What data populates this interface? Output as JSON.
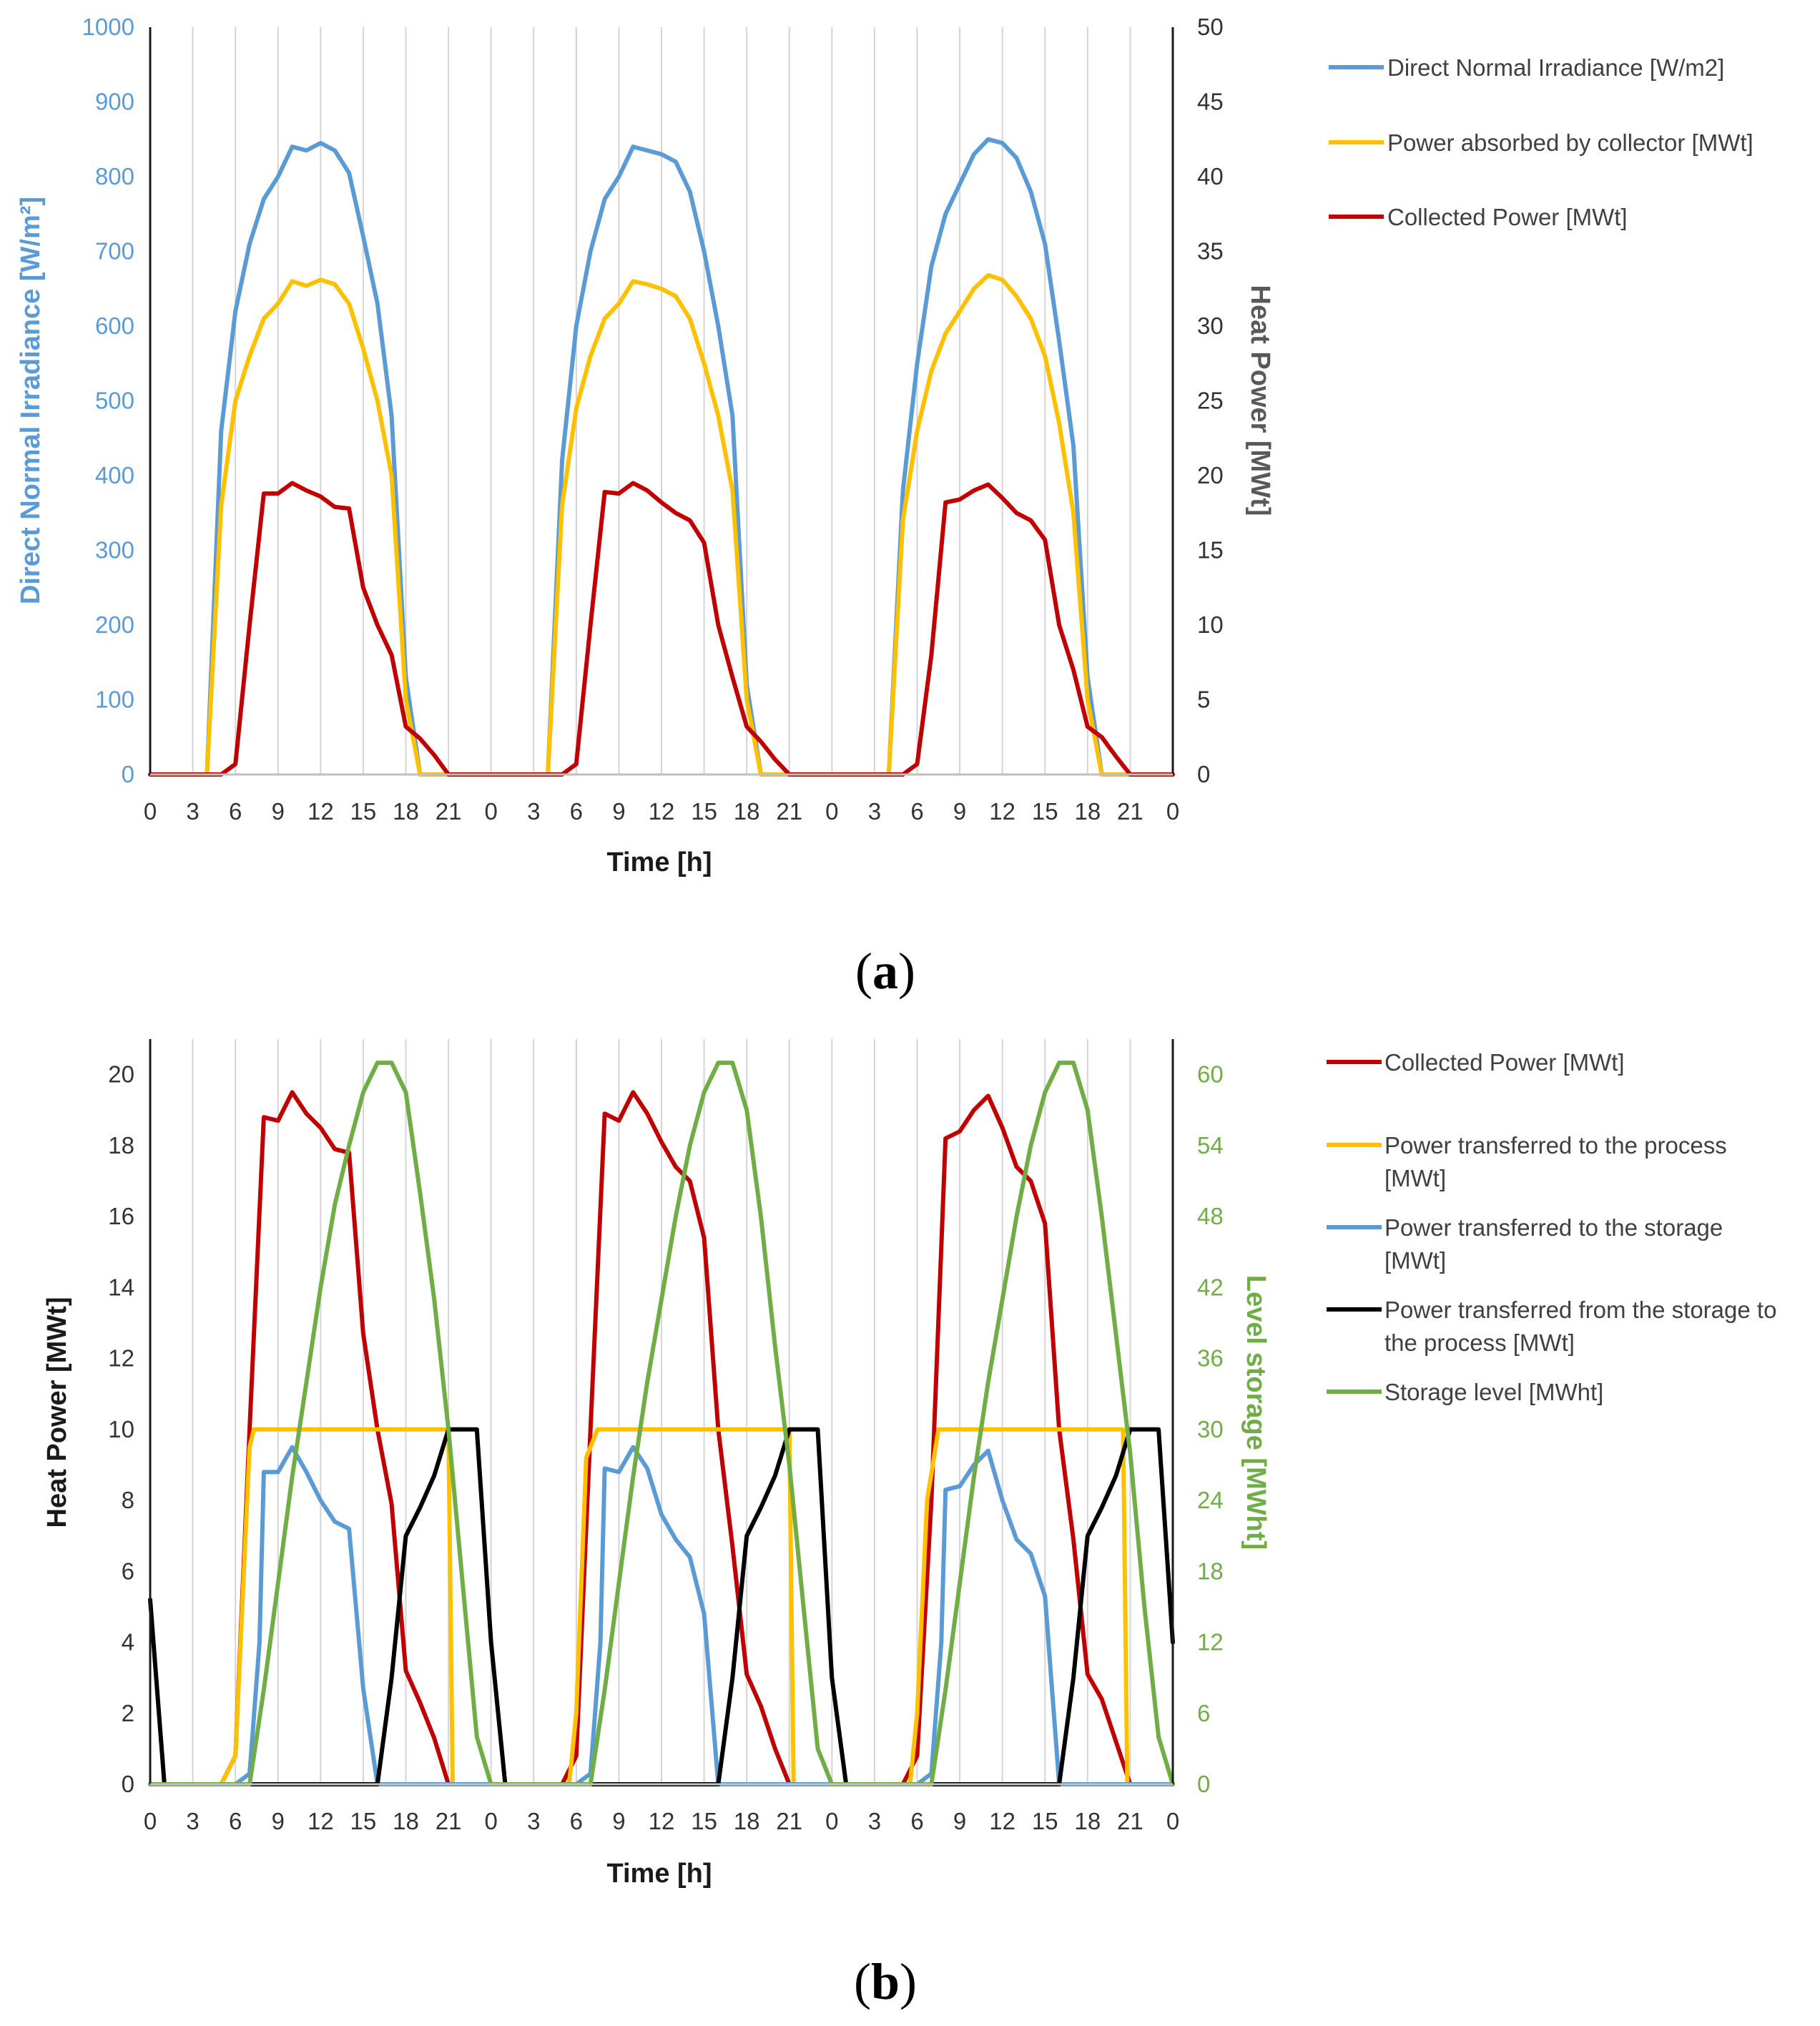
{
  "colors": {
    "blue": "#5b9bd5",
    "yellow": "#ffc000",
    "red": "#c00000",
    "black": "#000000",
    "green": "#70ad47",
    "gray_label": "#595959"
  },
  "chart_data": [
    {
      "id": "a",
      "type": "line",
      "panel_label": "a",
      "xlabel": "Time [h]",
      "x_tick_labels": [
        "0",
        "3",
        "6",
        "9",
        "12",
        "15",
        "18",
        "21",
        "0",
        "3",
        "6",
        "9",
        "12",
        "15",
        "18",
        "21",
        "0",
        "3",
        "6",
        "9",
        "12",
        "15",
        "18",
        "21",
        "0"
      ],
      "x_range": [
        0,
        72
      ],
      "y_left": {
        "label": "Direct Normal Irradiance [W/m²]",
        "range": [
          0,
          1000
        ],
        "ticks": [
          0,
          100,
          200,
          300,
          400,
          500,
          600,
          700,
          800,
          900,
          1000
        ]
      },
      "y_right": {
        "label": "Heat Power [MWt]",
        "range": [
          0,
          50
        ],
        "ticks": [
          0,
          5,
          10,
          15,
          20,
          25,
          30,
          35,
          40,
          45,
          50
        ]
      },
      "series": [
        {
          "name": "Direct Normal Irradiance [W/m2]",
          "axis": "left",
          "color": "#5b9bd5",
          "x": [
            0,
            1,
            2,
            3,
            4,
            5,
            6,
            7,
            8,
            9,
            10,
            11,
            12,
            13,
            14,
            15,
            16,
            17,
            18,
            19,
            20,
            21,
            22,
            23,
            24,
            25,
            26,
            27,
            28,
            29,
            30,
            31,
            32,
            33,
            34,
            35,
            36,
            37,
            38,
            39,
            40,
            41,
            42,
            43,
            44,
            45,
            46,
            47,
            48,
            49,
            50,
            51,
            52,
            53,
            54,
            55,
            56,
            57,
            58,
            59,
            60,
            61,
            62,
            63,
            64,
            65,
            66,
            67,
            68,
            69,
            70,
            71,
            72
          ],
          "values": [
            0,
            0,
            0,
            0,
            0,
            460,
            620,
            710,
            770,
            800,
            840,
            835,
            845,
            835,
            805,
            720,
            630,
            480,
            130,
            0,
            0,
            0,
            0,
            0,
            0,
            0,
            0,
            0,
            0,
            420,
            600,
            700,
            770,
            800,
            840,
            835,
            830,
            820,
            780,
            700,
            600,
            480,
            120,
            0,
            0,
            0,
            0,
            0,
            0,
            0,
            0,
            0,
            0,
            380,
            550,
            680,
            750,
            790,
            830,
            850,
            845,
            825,
            780,
            710,
            580,
            440,
            130,
            0,
            0,
            0,
            0,
            0,
            0
          ]
        },
        {
          "name": "Power absorbed by collector [MWt]",
          "axis": "right",
          "color": "#ffc000",
          "x": [
            0,
            1,
            2,
            3,
            4,
            5,
            6,
            7,
            8,
            9,
            10,
            11,
            12,
            13,
            14,
            15,
            16,
            17,
            18,
            19,
            20,
            21,
            22,
            23,
            24,
            25,
            26,
            27,
            28,
            29,
            30,
            31,
            32,
            33,
            34,
            35,
            36,
            37,
            38,
            39,
            40,
            41,
            42,
            43,
            44,
            45,
            46,
            47,
            48,
            49,
            50,
            51,
            52,
            53,
            54,
            55,
            56,
            57,
            58,
            59,
            60,
            61,
            62,
            63,
            64,
            65,
            66,
            67,
            68,
            69,
            70,
            71,
            72
          ],
          "values": [
            0,
            0,
            0,
            0,
            0,
            18,
            25,
            28,
            30.5,
            31.5,
            33,
            32.7,
            33.1,
            32.8,
            31.5,
            28.5,
            25,
            20,
            5,
            0,
            0,
            0,
            0,
            0,
            0,
            0,
            0,
            0,
            0,
            18,
            24.5,
            28,
            30.5,
            31.5,
            33,
            32.8,
            32.5,
            32,
            30.5,
            27.5,
            24,
            19,
            5,
            0,
            0,
            0,
            0,
            0,
            0,
            0,
            0,
            0,
            0,
            17,
            23,
            27,
            29.5,
            31,
            32.5,
            33.4,
            33.1,
            32,
            30.5,
            28,
            23.5,
            17.5,
            5,
            0,
            0,
            0,
            0,
            0,
            0
          ]
        },
        {
          "name": "Collected Power [MWt]",
          "axis": "right",
          "color": "#c00000",
          "x": [
            0,
            1,
            2,
            3,
            4,
            5,
            6,
            7,
            8,
            9,
            10,
            11,
            12,
            13,
            14,
            15,
            16,
            17,
            18,
            19,
            20,
            21,
            22,
            23,
            24,
            25,
            26,
            27,
            28,
            29,
            30,
            31,
            32,
            33,
            34,
            35,
            36,
            37,
            38,
            39,
            40,
            41,
            42,
            43,
            44,
            45,
            46,
            47,
            48,
            49,
            50,
            51,
            52,
            53,
            54,
            55,
            56,
            57,
            58,
            59,
            60,
            61,
            62,
            63,
            64,
            65,
            66,
            67,
            68,
            69,
            70,
            71,
            72
          ],
          "values": [
            0,
            0,
            0,
            0,
            0,
            0,
            0.7,
            10,
            18.8,
            18.8,
            19.5,
            19,
            18.6,
            17.9,
            17.8,
            12.5,
            10,
            8,
            3.2,
            2.4,
            1.3,
            0,
            0,
            0,
            0,
            0,
            0,
            0,
            0,
            0,
            0.7,
            10,
            18.9,
            18.8,
            19.5,
            19,
            18.2,
            17.5,
            17,
            15.5,
            10,
            6.5,
            3.2,
            2.2,
            1,
            0,
            0,
            0,
            0,
            0,
            0,
            0,
            0,
            0,
            0.7,
            8,
            18.2,
            18.4,
            19,
            19.4,
            18.5,
            17.5,
            17,
            15.7,
            10,
            7,
            3.2,
            2.5,
            1.2,
            0,
            0,
            0,
            0
          ]
        }
      ]
    },
    {
      "id": "b",
      "type": "line",
      "panel_label": "b",
      "xlabel": "Time [h]",
      "x_tick_labels": [
        "0",
        "3",
        "6",
        "9",
        "12",
        "15",
        "18",
        "21",
        "0",
        "3",
        "6",
        "9",
        "12",
        "15",
        "18",
        "21",
        "0",
        "3",
        "6",
        "9",
        "12",
        "15",
        "18",
        "21",
        "0"
      ],
      "x_range": [
        0,
        72
      ],
      "y_left": {
        "label": "Heat Power [MWt]",
        "range": [
          0,
          21
        ],
        "ticks": [
          0,
          2,
          4,
          6,
          8,
          10,
          12,
          14,
          16,
          18,
          20
        ]
      },
      "y_right": {
        "label": "Level storage [MWht]",
        "range": [
          0,
          63
        ],
        "ticks": [
          0,
          6,
          12,
          18,
          24,
          30,
          36,
          42,
          48,
          54,
          60
        ]
      },
      "series": [
        {
          "name": "Collected Power [MWt]",
          "axis": "left",
          "color": "#c00000",
          "x": [
            0,
            1,
            2,
            3,
            4,
            5,
            6,
            7,
            8,
            9,
            10,
            11,
            12,
            13,
            14,
            15,
            16,
            17,
            18,
            19,
            20,
            21,
            22,
            23,
            24,
            25,
            26,
            27,
            28,
            29,
            30,
            31,
            32,
            33,
            34,
            35,
            36,
            37,
            38,
            39,
            40,
            41,
            42,
            43,
            44,
            45,
            46,
            47,
            48,
            49,
            50,
            51,
            52,
            53,
            54,
            55,
            56,
            57,
            58,
            59,
            60,
            61,
            62,
            63,
            64,
            65,
            66,
            67,
            68,
            69,
            70,
            71,
            72
          ],
          "values": [
            0,
            0,
            0,
            0,
            0,
            0,
            0.8,
            10,
            18.8,
            18.7,
            19.5,
            18.9,
            18.5,
            17.9,
            17.8,
            12.7,
            10,
            7.9,
            3.2,
            2.3,
            1.3,
            0,
            0,
            0,
            0,
            0,
            0,
            0,
            0,
            0,
            0.8,
            10,
            18.9,
            18.7,
            19.5,
            18.9,
            18.1,
            17.4,
            17,
            15.4,
            10,
            6.7,
            3.1,
            2.2,
            1,
            0,
            0,
            0,
            0,
            0,
            0,
            0,
            0,
            0,
            0.8,
            8,
            18.2,
            18.4,
            19,
            19.4,
            18.5,
            17.4,
            17,
            15.8,
            10,
            6.9,
            3.1,
            2.4,
            1.2,
            0,
            0,
            0,
            0
          ]
        },
        {
          "name": "Power transferred to the process [MWt]",
          "axis": "left",
          "color": "#ffc000",
          "x": [
            0,
            5,
            6,
            7,
            7.3,
            21,
            21.3,
            29.5,
            30,
            30.7,
            31.5,
            45,
            45.3,
            53.5,
            54,
            54.7,
            55.5,
            68.5,
            68.8,
            72
          ],
          "values": [
            0,
            0,
            0.8,
            9.5,
            10,
            10,
            0,
            0,
            2,
            9.2,
            10,
            10,
            0,
            0,
            2,
            8,
            10,
            10,
            0,
            0
          ]
        },
        {
          "name": "Power transferred to the storage [MWt]",
          "axis": "left",
          "color": "#5b9bd5",
          "x": [
            0,
            6,
            7,
            7.7,
            8,
            9,
            10,
            11,
            12,
            13,
            14,
            15,
            16,
            17,
            30,
            31,
            31.7,
            32,
            33,
            34,
            35,
            36,
            37,
            38,
            39,
            40,
            41,
            54,
            55,
            55.7,
            56,
            57,
            58,
            59,
            60,
            61,
            62,
            63,
            64,
            65,
            72
          ],
          "values": [
            0,
            0,
            0.3,
            4,
            8.8,
            8.8,
            9.5,
            8.8,
            8,
            7.4,
            7.2,
            2.7,
            0,
            0,
            0,
            0.3,
            4,
            8.9,
            8.8,
            9.5,
            8.9,
            7.6,
            6.9,
            6.4,
            4.8,
            0,
            0,
            0,
            0.3,
            4,
            8.3,
            8.4,
            9,
            9.4,
            8,
            6.9,
            6.5,
            5.3,
            0,
            0,
            0
          ]
        },
        {
          "name": "Power transferred from the storage to the process [MWt]",
          "axis": "left",
          "color": "#000000",
          "x": [
            0,
            1,
            2,
            15,
            16,
            17,
            18,
            19,
            20,
            21,
            22,
            23,
            24,
            25,
            26,
            39,
            40,
            41,
            42,
            43,
            44,
            45,
            46,
            47,
            48,
            49,
            50,
            63,
            64,
            65,
            66,
            67,
            68,
            69,
            70,
            71,
            72
          ],
          "values": [
            5.2,
            0,
            0,
            0,
            0,
            3,
            7,
            7.8,
            8.7,
            10,
            10,
            10,
            4,
            0,
            0,
            0,
            0,
            3,
            7,
            7.8,
            8.7,
            10,
            10,
            10,
            3,
            0,
            0,
            0,
            0,
            3,
            7,
            7.8,
            8.7,
            10,
            10,
            10,
            4
          ]
        },
        {
          "name": "Storage level [MWht]",
          "axis": "right",
          "color": "#70ad47",
          "x": [
            0,
            1,
            6,
            7,
            8,
            9,
            10,
            11,
            12,
            13,
            14,
            15,
            16,
            17,
            18,
            19,
            20,
            21,
            22,
            23,
            24,
            25,
            30,
            31,
            32,
            33,
            34,
            35,
            36,
            37,
            38,
            39,
            40,
            41,
            42,
            43,
            44,
            45,
            46,
            47,
            48,
            49,
            54,
            55,
            56,
            57,
            58,
            59,
            60,
            61,
            62,
            63,
            64,
            65,
            66,
            67,
            68,
            69,
            70,
            71,
            72
          ],
          "values": [
            0,
            0,
            0,
            0,
            8,
            17,
            26,
            34,
            42,
            49,
            54,
            58.5,
            61,
            61,
            58.5,
            50,
            41,
            30,
            17,
            4,
            0,
            0,
            0,
            0,
            8,
            17,
            26,
            34,
            41,
            48,
            54,
            58.5,
            61,
            61,
            57,
            48,
            37,
            27,
            15,
            3,
            0,
            0,
            0,
            0,
            8,
            17,
            26,
            34,
            41,
            48,
            54,
            58.5,
            61,
            61,
            57,
            48,
            38,
            28,
            15,
            4,
            0
          ]
        }
      ]
    }
  ]
}
